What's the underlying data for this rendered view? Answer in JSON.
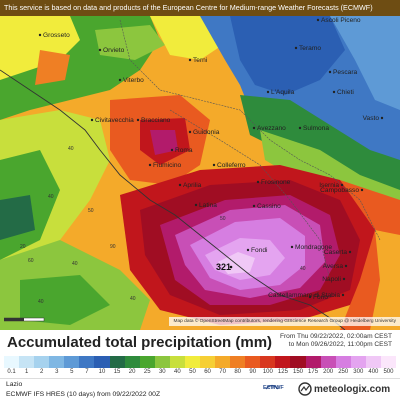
{
  "banner": "This service is based on data and products of the European Centre for Medium-range Weather Forecasts (ECMWF)",
  "map_attribution": "Map data © OpenStreetMap contributors, rendering GIScience Research Group @ Heidelberg University",
  "max_value_label": "321",
  "legend": {
    "title": "Accumulated total precipitation (mm)",
    "period_from": "From Thu 09/22/2022, 02:00am CEST",
    "period_to": "to Mon 09/26/2022, 11:00pm CEST",
    "ticks": [
      "0.1",
      "1",
      "2",
      "3",
      "5",
      "7",
      "10",
      "15",
      "20",
      "25",
      "30",
      "40",
      "50",
      "60",
      "70",
      "80",
      "90",
      "100",
      "125",
      "150",
      "175",
      "200",
      "250",
      "300",
      "400",
      "500"
    ],
    "colors": [
      "#e8f8ff",
      "#c6e4f5",
      "#a6d2ee",
      "#7fb7e3",
      "#5e9ad6",
      "#3f78c4",
      "#2b5fb3",
      "#236b46",
      "#2e8b3c",
      "#4aa62e",
      "#8cc63e",
      "#c8df3c",
      "#f1ec3c",
      "#f6cf35",
      "#f4aa2a",
      "#ef7f24",
      "#e95a20",
      "#d8371f",
      "#c1161c",
      "#a00d23",
      "#b21b6b",
      "#c84fb6",
      "#d67ee1",
      "#e4a4f0",
      "#f0c8f6",
      "#fbe6fb"
    ]
  },
  "region": "Lazio",
  "model": "ECMWF IFS HRES (10 days) from 09/22/2022 00Z",
  "ecmwf_label": "ECMWF",
  "brand": "meteologix.com",
  "cities": [
    {
      "name": "Ascoli Piceno"
    },
    {
      "name": "Grosseto"
    },
    {
      "name": "Teramo"
    },
    {
      "name": "Terni"
    },
    {
      "name": "Pescara"
    },
    {
      "name": "Orvieto"
    },
    {
      "name": "Viterbo"
    },
    {
      "name": "L'Aquila"
    },
    {
      "name": "Chieti"
    },
    {
      "name": "Civitavecchia"
    },
    {
      "name": "Bracciano"
    },
    {
      "name": "Guidonia"
    },
    {
      "name": "Avezzano"
    },
    {
      "name": "Sulmona"
    },
    {
      "name": "Vasto"
    },
    {
      "name": "Roma"
    },
    {
      "name": "Fiumicino"
    },
    {
      "name": "Colleferro"
    },
    {
      "name": "Aprilia"
    },
    {
      "name": "Frosinone"
    },
    {
      "name": "Isernia"
    },
    {
      "name": "Campobasso"
    },
    {
      "name": "Latina"
    },
    {
      "name": "Fondi"
    },
    {
      "name": "Cassino"
    },
    {
      "name": "Mondragone"
    },
    {
      "name": "Caserta"
    },
    {
      "name": "Aversa"
    },
    {
      "name": "Napoli"
    },
    {
      "name": "Forio"
    },
    {
      "name": "Castellammare di Stabia"
    }
  ],
  "contour_values": [
    "50",
    "40",
    "90",
    "40",
    "60",
    "40",
    "40",
    "40",
    "20",
    "40",
    "50"
  ]
}
